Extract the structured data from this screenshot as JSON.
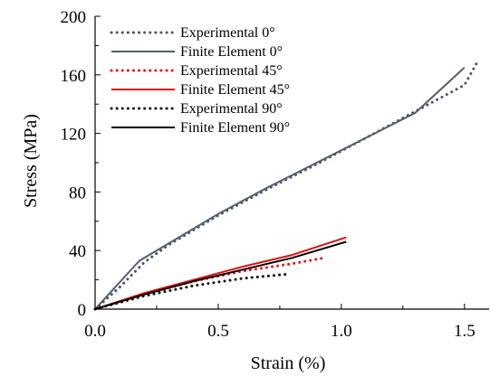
{
  "chart_data": {
    "type": "line",
    "xlabel": "Strain (%)",
    "ylabel": "Stress (MPa)",
    "xlim": [
      0,
      1.6
    ],
    "ylim": [
      0,
      200
    ],
    "x_ticks": [
      0,
      0.5,
      1.0,
      1.5
    ],
    "x_tick_labels": [
      "0.0",
      "0.5",
      "1.0",
      "1.5"
    ],
    "y_ticks": [
      0,
      40,
      80,
      120,
      160,
      200
    ],
    "y_tick_labels": [
      "0",
      "40",
      "80",
      "120",
      "160",
      "200"
    ],
    "grid": false,
    "legend_position": "top-left",
    "series": [
      {
        "name": "Experimental 0°",
        "style": "dotted",
        "color": "#4a5566",
        "x": [
          0,
          0.1,
          0.2,
          0.3,
          0.5,
          0.7,
          0.9,
          1.1,
          1.3,
          1.5,
          1.55
        ],
        "y": [
          0,
          15,
          32,
          44,
          64,
          82,
          99,
          117,
          135,
          153,
          168
        ]
      },
      {
        "name": "Finite Element 0°",
        "style": "solid",
        "color": "#555e6b",
        "x": [
          0,
          0.18,
          0.3,
          0.5,
          0.7,
          0.9,
          1.1,
          1.3,
          1.5
        ],
        "y": [
          0,
          33,
          45,
          65,
          83,
          100,
          117,
          134,
          165
        ]
      },
      {
        "name": "Experimental 45°",
        "style": "dotted",
        "color": "#ee1111",
        "x": [
          0,
          0.2,
          0.4,
          0.6,
          0.8,
          0.93
        ],
        "y": [
          0,
          10,
          19,
          26,
          31,
          35
        ]
      },
      {
        "name": "Finite Element 45°",
        "style": "solid",
        "color": "#dd1111",
        "x": [
          0,
          0.2,
          0.4,
          0.6,
          0.8,
          1.02
        ],
        "y": [
          0,
          11,
          20,
          29,
          37,
          49
        ]
      },
      {
        "name": "Experimental 90°",
        "style": "dotted",
        "color": "#111111",
        "x": [
          0,
          0.2,
          0.4,
          0.6,
          0.79
        ],
        "y": [
          0,
          9,
          16,
          21,
          24
        ]
      },
      {
        "name": "Finite Element 90°",
        "style": "solid",
        "color": "#000000",
        "x": [
          0,
          0.2,
          0.4,
          0.6,
          0.8,
          1.02
        ],
        "y": [
          0,
          10,
          19,
          27,
          35,
          46
        ]
      }
    ]
  }
}
